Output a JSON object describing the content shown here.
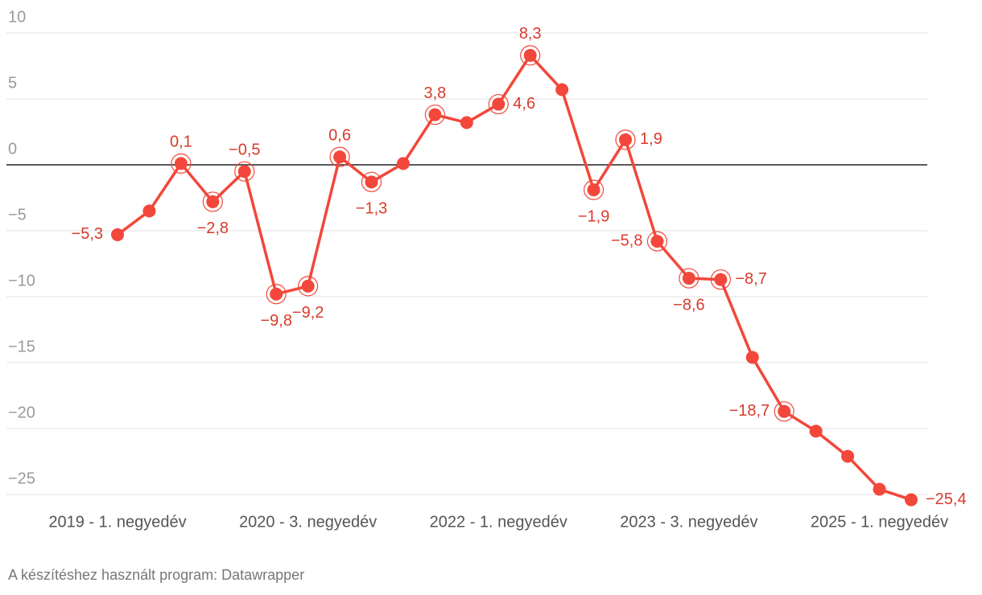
{
  "chart_data": {
    "type": "line",
    "categories": [
      "2019 - 1. negyedév",
      null,
      null,
      null,
      null,
      null,
      "2020 - 3. negyedév",
      null,
      null,
      null,
      null,
      null,
      "2022 - 1. negyedév",
      null,
      null,
      null,
      null,
      null,
      "2023 - 3. negyedév",
      null,
      null,
      null,
      null,
      null,
      "2025 - 1. negyedév",
      null
    ],
    "series": [
      {
        "color": "#f2473a",
        "values": [
          -5.3,
          -3.5,
          0.1,
          -2.8,
          -0.5,
          -9.8,
          -9.2,
          0.6,
          -1.3,
          0.1,
          3.8,
          3.2,
          4.6,
          8.3,
          5.7,
          -1.9,
          1.9,
          -5.8,
          -8.6,
          -8.7,
          -14.6,
          -18.7,
          -20.2,
          -22.1,
          -24.6,
          -25.4
        ],
        "value_labels": [
          "−5,3",
          null,
          "0,1",
          "−2,8",
          "−0,5",
          "−9,8",
          "−9,2",
          "0,6",
          "−1,3",
          null,
          "3,8",
          null,
          "4,6",
          "8,3",
          null,
          "−1,9",
          "1,9",
          "−5,8",
          "−8,6",
          "−8,7",
          null,
          "−18,7",
          null,
          null,
          null,
          "−25,4"
        ]
      }
    ],
    "ylim": [
      -25,
      10
    ],
    "yticks": [
      10,
      5,
      0,
      {
        "value": -5,
        "label": "−5"
      },
      {
        "value": -10,
        "label": "−10"
      },
      {
        "value": -15,
        "label": "−15"
      },
      {
        "value": -20,
        "label": "−20"
      },
      {
        "value": -25,
        "label": "−25"
      }
    ],
    "grid": true,
    "footer": "A készítéshez használt program: Datawrapper"
  }
}
